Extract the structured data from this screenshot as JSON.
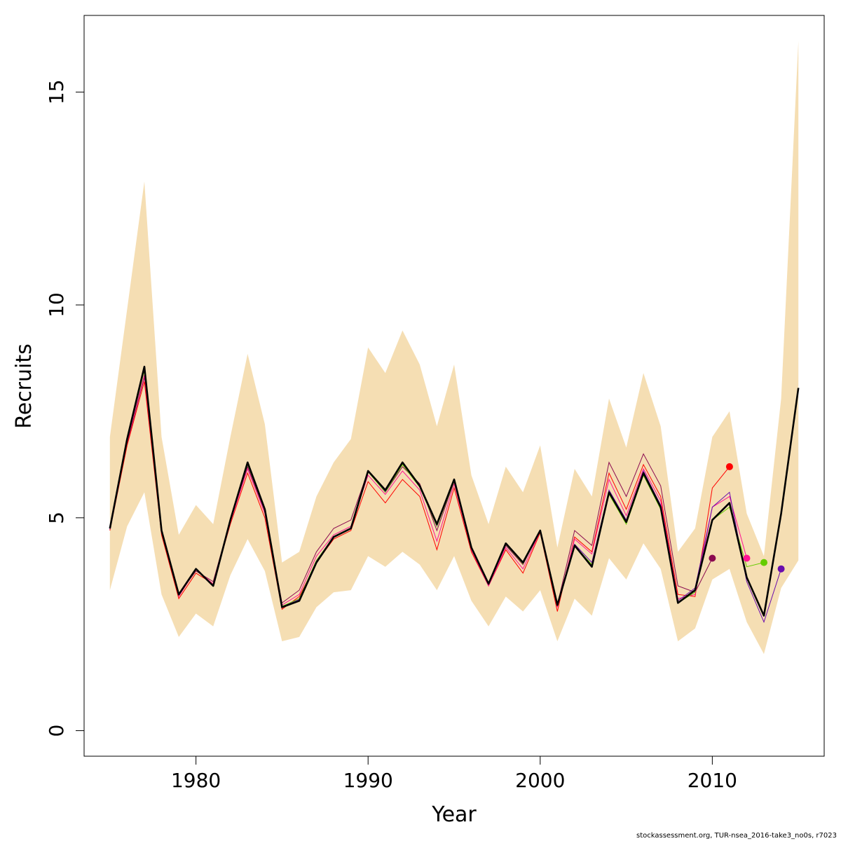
{
  "chart_data": {
    "type": "line",
    "xlabel": "Year",
    "ylabel": "Recruits",
    "xlim": [
      1973.5,
      2016.5
    ],
    "ylim": [
      -0.6,
      16.8
    ],
    "xticks": [
      1980,
      1990,
      2000,
      2010
    ],
    "yticks": [
      0,
      5,
      10,
      15
    ],
    "grid": false,
    "band": {
      "color": "#F5DEB3",
      "x": [
        1975,
        1976,
        1977,
        1978,
        1979,
        1980,
        1981,
        1982,
        1983,
        1984,
        1985,
        1986,
        1987,
        1988,
        1989,
        1990,
        1991,
        1992,
        1993,
        1994,
        1995,
        1996,
        1997,
        1998,
        1999,
        2000,
        2001,
        2002,
        2003,
        2004,
        2005,
        2006,
        2007,
        2008,
        2009,
        2010,
        2011,
        2012,
        2013,
        2014,
        2015
      ],
      "upper": [
        6.9,
        9.9,
        12.9,
        6.9,
        4.6,
        5.3,
        4.85,
        6.9,
        8.85,
        7.2,
        3.95,
        4.2,
        5.5,
        6.3,
        6.85,
        9.0,
        8.4,
        9.4,
        8.6,
        7.15,
        8.6,
        6.0,
        4.85,
        6.2,
        5.6,
        6.7,
        4.3,
        6.15,
        5.5,
        7.8,
        6.65,
        8.4,
        7.15,
        4.2,
        4.75,
        6.9,
        7.5,
        5.1,
        4.1,
        7.8,
        16.2
      ],
      "lower": [
        3.3,
        4.8,
        5.6,
        3.2,
        2.2,
        2.75,
        2.45,
        3.65,
        4.5,
        3.75,
        2.1,
        2.2,
        2.9,
        3.25,
        3.3,
        4.1,
        3.85,
        4.2,
        3.9,
        3.3,
        4.1,
        3.05,
        2.45,
        3.15,
        2.8,
        3.3,
        2.1,
        3.1,
        2.7,
        4.05,
        3.55,
        4.4,
        3.8,
        2.1,
        2.4,
        3.55,
        3.8,
        2.55,
        1.8,
        3.35,
        4.0
      ]
    },
    "main": {
      "color": "#000000",
      "x": [
        1975,
        1976,
        1977,
        1978,
        1979,
        1980,
        1981,
        1982,
        1983,
        1984,
        1985,
        1986,
        1987,
        1988,
        1989,
        1990,
        1991,
        1992,
        1993,
        1994,
        1995,
        1996,
        1997,
        1998,
        1999,
        2000,
        2001,
        2002,
        2003,
        2004,
        2005,
        2006,
        2007,
        2008,
        2009,
        2010,
        2011,
        2012,
        2013,
        2014,
        2015
      ],
      "y": [
        4.75,
        6.85,
        8.55,
        4.7,
        3.2,
        3.8,
        3.4,
        4.95,
        6.3,
        5.2,
        2.9,
        3.05,
        3.95,
        4.55,
        4.75,
        6.1,
        5.65,
        6.3,
        5.75,
        4.85,
        5.9,
        4.3,
        3.45,
        4.4,
        3.95,
        4.7,
        2.95,
        4.35,
        3.85,
        5.6,
        4.9,
        6.05,
        5.25,
        3.0,
        3.3,
        4.95,
        5.35,
        3.6,
        2.7,
        5.1,
        8.05
      ]
    },
    "series": [
      {
        "color": "#8B0A50",
        "x": [
          1975,
          1976,
          1977,
          1978,
          1979,
          1980,
          1981,
          1982,
          1983,
          1984,
          1985,
          1986,
          1987,
          1988,
          1989,
          1990,
          1991,
          1992,
          1993,
          1994,
          1995,
          1996,
          1997,
          1998,
          1999,
          2000,
          2001,
          2002,
          2003,
          2004,
          2005,
          2006,
          2007,
          2008,
          2009,
          2010
        ],
        "y": [
          4.72,
          6.75,
          8.3,
          4.65,
          3.2,
          3.75,
          3.5,
          4.95,
          6.2,
          5.15,
          3.0,
          3.3,
          4.2,
          4.75,
          4.95,
          6.1,
          5.6,
          6.2,
          5.8,
          4.7,
          5.85,
          4.3,
          3.45,
          4.35,
          3.9,
          4.7,
          2.95,
          4.7,
          4.35,
          6.3,
          5.5,
          6.5,
          5.75,
          3.4,
          3.25,
          4.05
        ],
        "end": [
          2010,
          4.05
        ]
      },
      {
        "color": "#FF0000",
        "x": [
          1975,
          1976,
          1977,
          1978,
          1979,
          1980,
          1981,
          1982,
          1983,
          1984,
          1985,
          1986,
          1987,
          1988,
          1989,
          1990,
          1991,
          1992,
          1993,
          1994,
          1995,
          1996,
          1997,
          1998,
          1999,
          2000,
          2001,
          2002,
          2003,
          2004,
          2005,
          2006,
          2007,
          2008,
          2009,
          2010,
          2011
        ],
        "y": [
          4.7,
          6.7,
          8.2,
          4.6,
          3.1,
          3.7,
          3.45,
          4.85,
          6.05,
          5.0,
          2.85,
          3.15,
          3.95,
          4.5,
          4.7,
          5.85,
          5.35,
          5.9,
          5.5,
          4.25,
          5.7,
          4.2,
          3.4,
          4.25,
          3.7,
          4.65,
          2.8,
          4.55,
          4.2,
          6.05,
          5.2,
          6.25,
          5.5,
          3.2,
          3.15,
          5.7,
          6.2
        ],
        "end": [
          2011,
          6.2
        ]
      },
      {
        "color": "#FF1493",
        "x": [
          1975,
          1976,
          1977,
          1978,
          1979,
          1980,
          1981,
          1982,
          1983,
          1984,
          1985,
          1986,
          1987,
          1988,
          1989,
          1990,
          1991,
          1992,
          1993,
          1994,
          1995,
          1996,
          1997,
          1998,
          1999,
          2000,
          2001,
          2002,
          2003,
          2004,
          2005,
          2006,
          2007,
          2008,
          2009,
          2010,
          2011,
          2012
        ],
        "y": [
          4.73,
          6.8,
          8.35,
          4.68,
          3.15,
          3.78,
          3.45,
          4.9,
          6.15,
          5.1,
          2.95,
          3.2,
          4.1,
          4.6,
          4.8,
          6.0,
          5.55,
          6.1,
          5.65,
          4.45,
          5.8,
          4.25,
          3.4,
          4.3,
          3.8,
          4.68,
          2.9,
          4.5,
          4.15,
          5.9,
          5.05,
          6.15,
          5.4,
          3.1,
          3.2,
          5.25,
          5.5,
          4.05
        ],
        "end": [
          2012,
          4.05
        ]
      },
      {
        "color": "#66CC00",
        "x": [
          1975,
          1976,
          1977,
          1978,
          1979,
          1980,
          1981,
          1982,
          1983,
          1984,
          1985,
          1986,
          1987,
          1988,
          1989,
          1990,
          1991,
          1992,
          1993,
          1994,
          1995,
          1996,
          1997,
          1998,
          1999,
          2000,
          2001,
          2002,
          2003,
          2004,
          2005,
          2006,
          2007,
          2008,
          2009,
          2010,
          2011,
          2012,
          2013
        ],
        "y": [
          4.74,
          6.82,
          8.45,
          4.7,
          3.18,
          3.79,
          3.42,
          4.93,
          6.25,
          5.18,
          2.92,
          3.1,
          4.0,
          4.55,
          4.75,
          6.08,
          5.6,
          6.25,
          5.72,
          4.8,
          5.85,
          4.28,
          3.44,
          4.38,
          3.92,
          4.7,
          2.95,
          4.35,
          3.9,
          5.55,
          4.85,
          6.0,
          5.2,
          3.0,
          3.25,
          4.95,
          5.25,
          3.85,
          3.95
        ],
        "end": [
          2013,
          3.95
        ]
      },
      {
        "color": "#6A0DAD",
        "x": [
          1975,
          1976,
          1977,
          1978,
          1979,
          1980,
          1981,
          1982,
          1983,
          1984,
          1985,
          1986,
          1987,
          1988,
          1989,
          1990,
          1991,
          1992,
          1993,
          1994,
          1995,
          1996,
          1997,
          1998,
          1999,
          2000,
          2001,
          2002,
          2003,
          2004,
          2005,
          2006,
          2007,
          2008,
          2009,
          2010,
          2011,
          2012,
          2013,
          2014
        ],
        "y": [
          4.74,
          6.83,
          8.5,
          4.7,
          3.19,
          3.8,
          3.41,
          4.94,
          6.28,
          5.19,
          2.91,
          3.08,
          3.98,
          4.55,
          4.76,
          6.1,
          5.62,
          6.28,
          5.74,
          4.82,
          5.88,
          4.29,
          3.45,
          4.39,
          3.94,
          4.7,
          2.95,
          4.38,
          3.95,
          5.65,
          4.95,
          6.1,
          5.3,
          3.05,
          3.35,
          5.25,
          5.6,
          3.5,
          2.55,
          3.8
        ],
        "end": [
          2014,
          3.8
        ]
      }
    ]
  },
  "footer": "stockassessment.org, TUR-nsea_2016-take3_no0s, r7023"
}
